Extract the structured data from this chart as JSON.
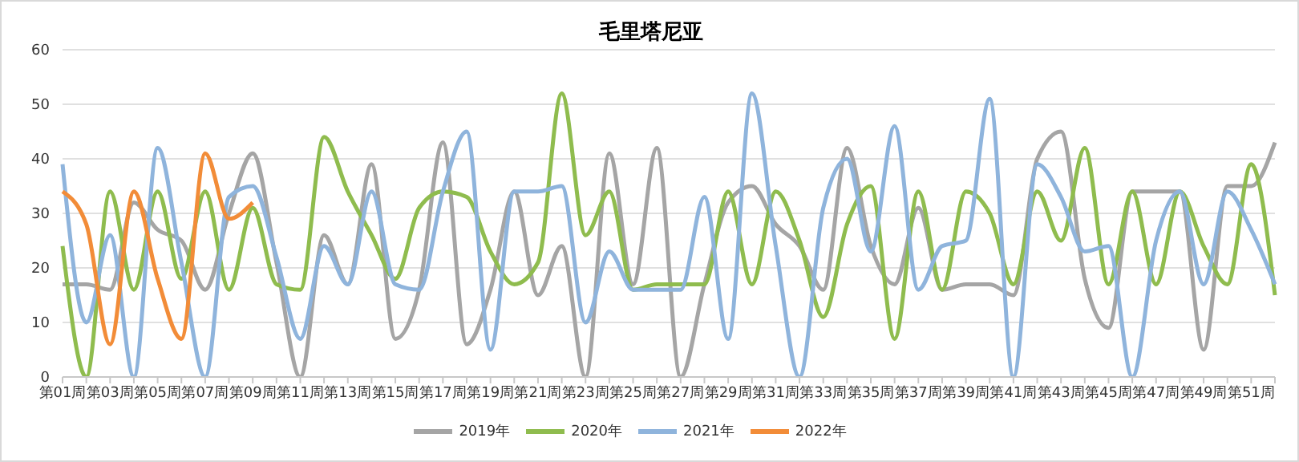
{
  "chart_data": {
    "type": "line",
    "title": "毛里塔尼亚",
    "categories": [
      "第01周",
      null,
      "第03周",
      null,
      "第05周",
      null,
      "第07周",
      null,
      "第09周",
      null,
      "第11周",
      null,
      "第13周",
      null,
      "第15周",
      null,
      "第17周",
      null,
      "第19周",
      null,
      "第21周",
      null,
      "第23周",
      null,
      "第25周",
      null,
      "第27周",
      null,
      "第29周",
      null,
      "第31周",
      null,
      "第33周",
      null,
      "第35周",
      null,
      "第37周",
      null,
      "第39周",
      null,
      "第41周",
      null,
      "第43周",
      null,
      "第45周",
      null,
      "第47周",
      null,
      "第49周",
      null,
      "第51周",
      null
    ],
    "series": [
      {
        "name": "2019年",
        "color": "#a5a5a5",
        "values": [
          17,
          17,
          16,
          32,
          27,
          25,
          16,
          30,
          41,
          21,
          0,
          26,
          17,
          39,
          7,
          16,
          43,
          6,
          16,
          34,
          15,
          24,
          0,
          41,
          17,
          42,
          0,
          17,
          32,
          35,
          28,
          24,
          16,
          42,
          24,
          17,
          31,
          16,
          17,
          17,
          15,
          40,
          45,
          18,
          9,
          34,
          34,
          34,
          5,
          35,
          35,
          43
        ]
      },
      {
        "name": "2020年",
        "color": "#8fbc4e",
        "values": [
          24,
          0,
          34,
          16,
          34,
          18,
          34,
          16,
          31,
          17,
          16,
          44,
          34,
          26,
          18,
          31,
          34,
          33,
          23,
          17,
          21,
          52,
          26,
          34,
          16,
          17,
          17,
          17,
          34,
          17,
          34,
          25,
          11,
          28,
          35,
          7,
          34,
          16,
          34,
          30,
          17,
          34,
          25,
          42,
          17,
          34,
          17,
          34,
          24,
          17,
          39,
          15
        ]
      },
      {
        "name": "2021年",
        "color": "#8fb4dc",
        "values": [
          39,
          10,
          26,
          0,
          42,
          21,
          0,
          33,
          35,
          22,
          7,
          24,
          17,
          34,
          17,
          16,
          34,
          45,
          5,
          34,
          34,
          35,
          10,
          23,
          16,
          16,
          16,
          33,
          7,
          52,
          24,
          0,
          31,
          40,
          23,
          46,
          16,
          24,
          25,
          51,
          0,
          39,
          33,
          23,
          24,
          0,
          25,
          34,
          17,
          34,
          27,
          17
        ]
      },
      {
        "name": "2022年",
        "color": "#f28c38",
        "values": [
          34,
          28,
          6,
          34,
          18,
          7,
          41,
          29,
          32,
          null,
          null,
          null,
          null,
          null,
          null,
          null,
          null,
          null,
          null,
          null,
          null,
          null,
          null,
          null,
          null,
          null,
          null,
          null,
          null,
          null,
          null,
          null,
          null,
          null,
          null,
          null,
          null,
          null,
          null,
          null,
          null,
          null,
          null,
          null,
          null,
          null,
          null,
          null,
          null,
          null,
          null,
          null
        ]
      }
    ],
    "ylim": [
      0,
      60
    ],
    "yticks": [
      0,
      10,
      20,
      30,
      40,
      50,
      60
    ],
    "grid": "y",
    "legend": "bottom",
    "marker": "none",
    "line_style": "solid"
  }
}
